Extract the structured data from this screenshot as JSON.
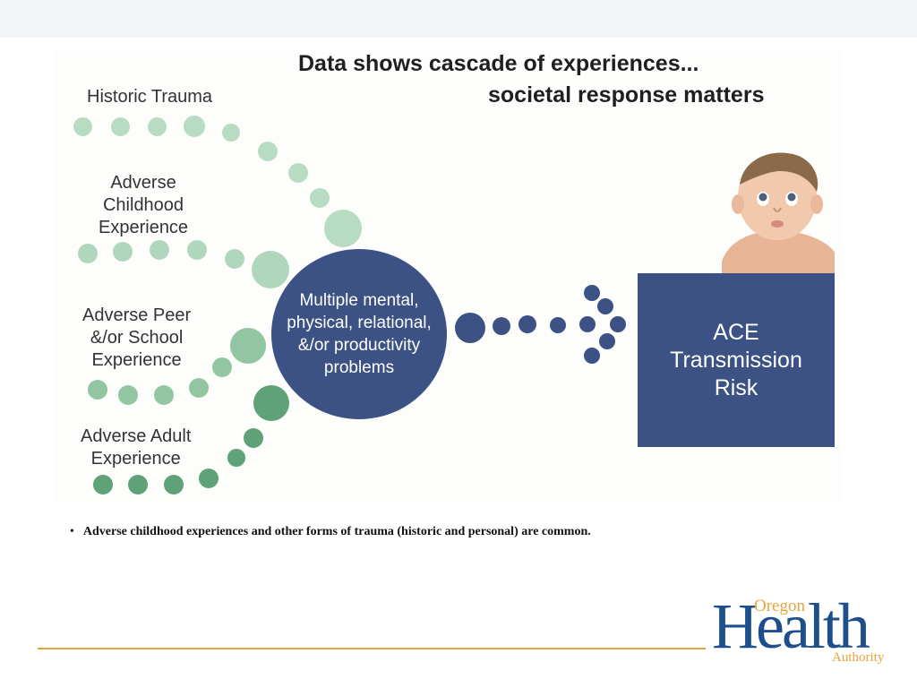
{
  "title": {
    "line1": "Data shows cascade of experiences...",
    "line2": "societal response matters"
  },
  "labels": {
    "historic": "Historic Trauma",
    "childhood": "Adverse\nChildhood\nExperience",
    "peer": "Adverse Peer\n&/or School\nExperience",
    "adult": "Adverse Adult\nExperience"
  },
  "hub": {
    "text": "Multiple mental,\nphysical, relational,\n&/or productivity\nproblems"
  },
  "outcome": {
    "text": "ACE\nTransmission\nRisk"
  },
  "bullet": {
    "text": "Adverse childhood experiences and other forms of trauma (historic and personal) are common."
  },
  "logo": {
    "oregon": "Oregon",
    "health": "Health",
    "authority": "Authority"
  },
  "colors": {
    "navy": "#3c5284",
    "historic_dots": "#b8dbc4",
    "childhood_dots": "#b0d7bd",
    "peer_dots": "#92c6a2",
    "adult_dots": "#5fa277",
    "accent_orange": "#e8a33c",
    "logo_blue": "#1f4e8c"
  }
}
